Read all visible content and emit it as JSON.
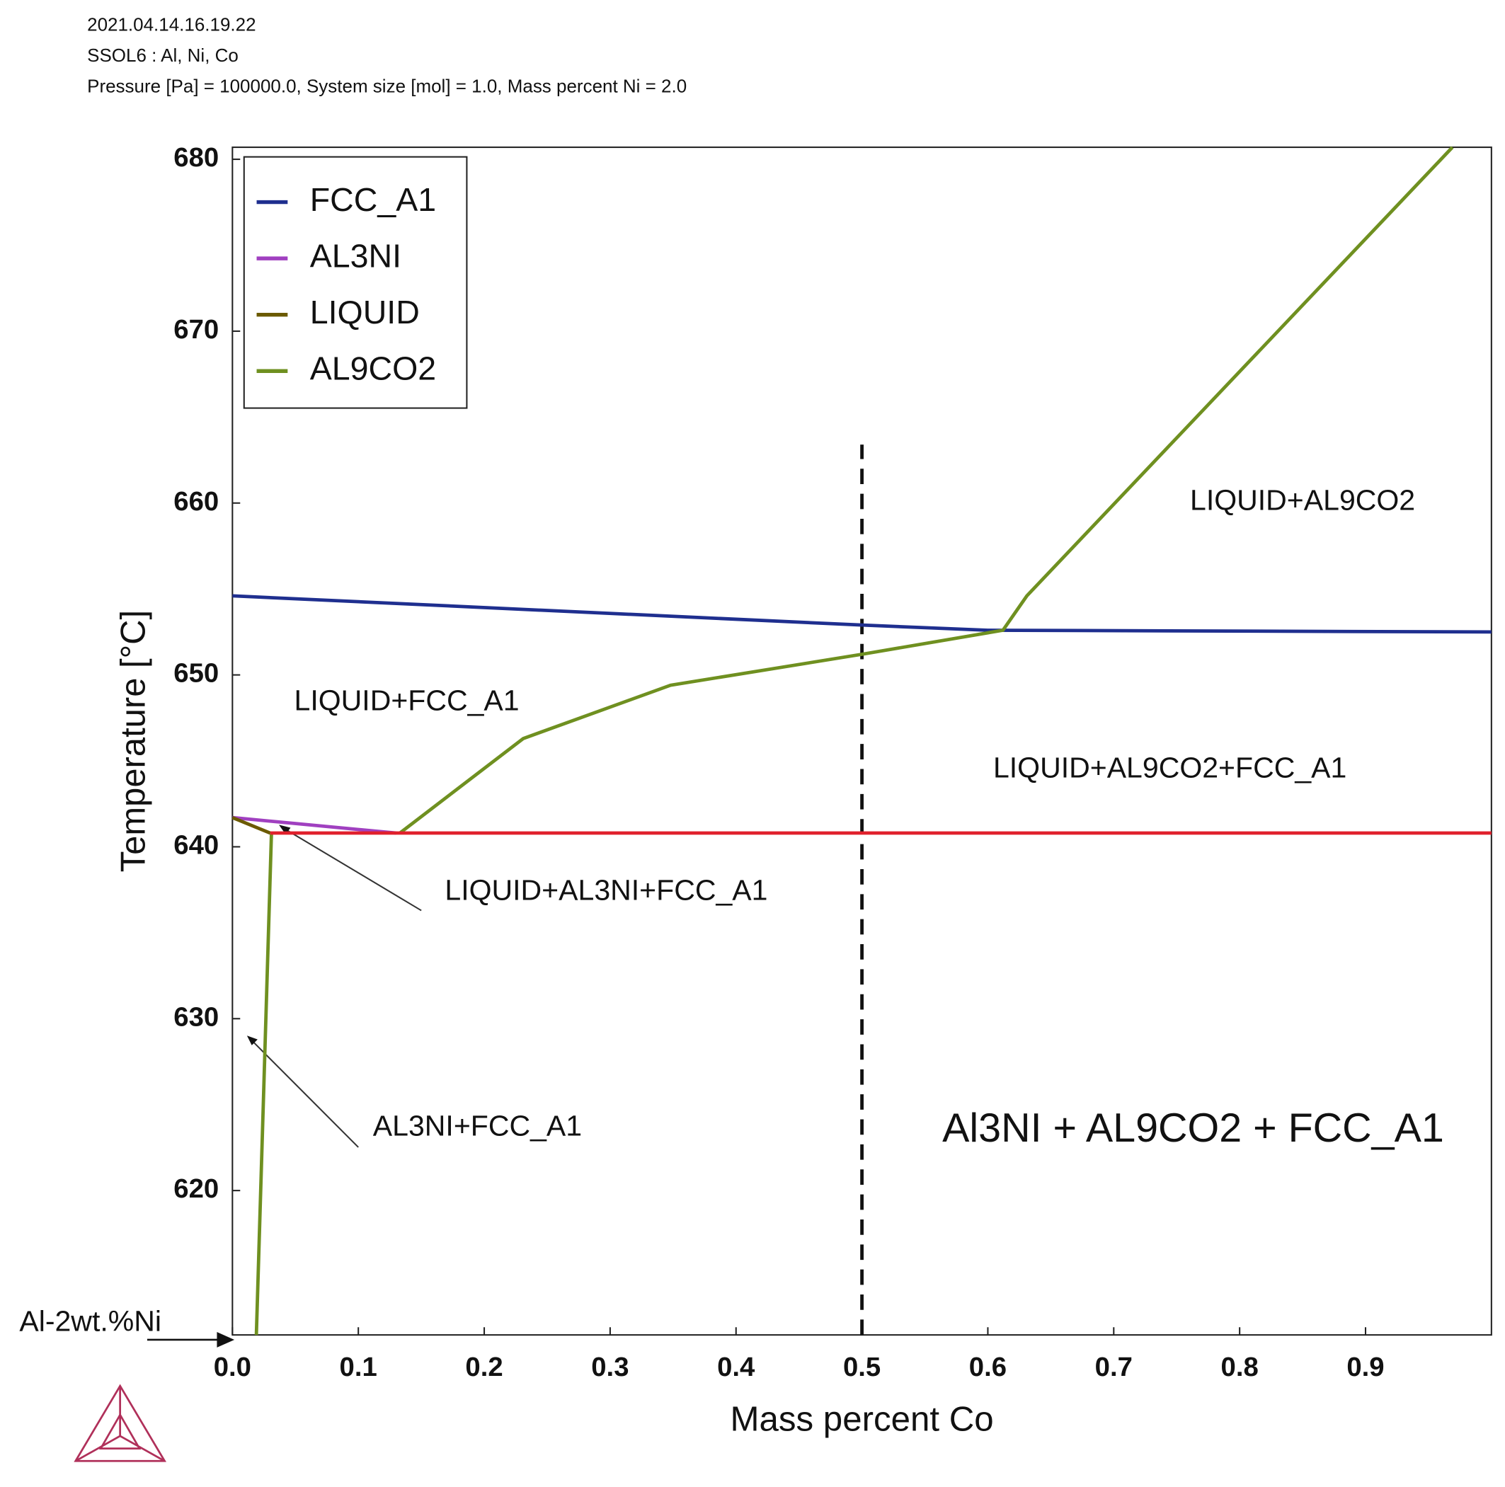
{
  "header": [
    "2021.04.14.16.19.22",
    "SSOL6 : Al, Ni, Co",
    "Pressure [Pa] = 100000.0, System size [mol] = 1.0, Mass percent Ni = 2.0"
  ],
  "chart_data": {
    "type": "line",
    "x_label": "Mass percent Co",
    "y_label": "Temperature [°C]",
    "xlim": [
      0,
      1
    ],
    "ylim": [
      611.6,
      680.7
    ],
    "xticks": [
      {
        "value": 0,
        "label": "0.0"
      },
      0.1,
      0.2,
      0.3,
      0.4,
      0.5,
      0.6,
      0.7,
      0.8,
      0.9
    ],
    "yticks": [
      620,
      630,
      640,
      650,
      660,
      670,
      680
    ],
    "series": [
      {
        "name": "FCC_A1",
        "color": "#1f2f8f",
        "x": [
          0,
          0.5,
          0.6,
          1.0
        ],
        "values": [
          654.6,
          652.9,
          652.6,
          652.5
        ]
      },
      {
        "name": "AL3NI",
        "color": "#a040c0",
        "x": [
          0,
          0.13
        ],
        "values": [
          641.7,
          640.8
        ]
      },
      {
        "name": "LIQUID",
        "color": "#6b5a00",
        "x": [
          0,
          0.03
        ],
        "values": [
          641.7,
          640.8
        ]
      },
      {
        "name": "AL9CO2",
        "color": "#6f9020",
        "x": [
          0.019,
          0.031,
          0.08,
          0.133,
          0.231,
          0.348,
          0.5,
          0.612,
          0.631,
          0.969
        ],
        "values": [
          611.6,
          640.8,
          null,
          640.8,
          646.3,
          649.4,
          651.2,
          652.6,
          654.6,
          680.7
        ]
      },
      {
        "color": "#e0202c",
        "x": [
          0.03,
          1.0
        ],
        "values": [
          640.8,
          640.8
        ]
      }
    ],
    "reference_line": {
      "x": 0.5,
      "y": [
        611.6,
        663.4
      ]
    },
    "annotations": [
      "LIQUID+AL9CO2",
      "LIQUID+FCC_A1",
      "LIQUID+AL9CO2+FCC_A1",
      "LIQUID+AL3NI+FCC_A1",
      "AL3NI+FCC_A1",
      "Al3NI + AL9CO2 + FCC_A1",
      "Al-2wt.%Ni"
    ]
  }
}
